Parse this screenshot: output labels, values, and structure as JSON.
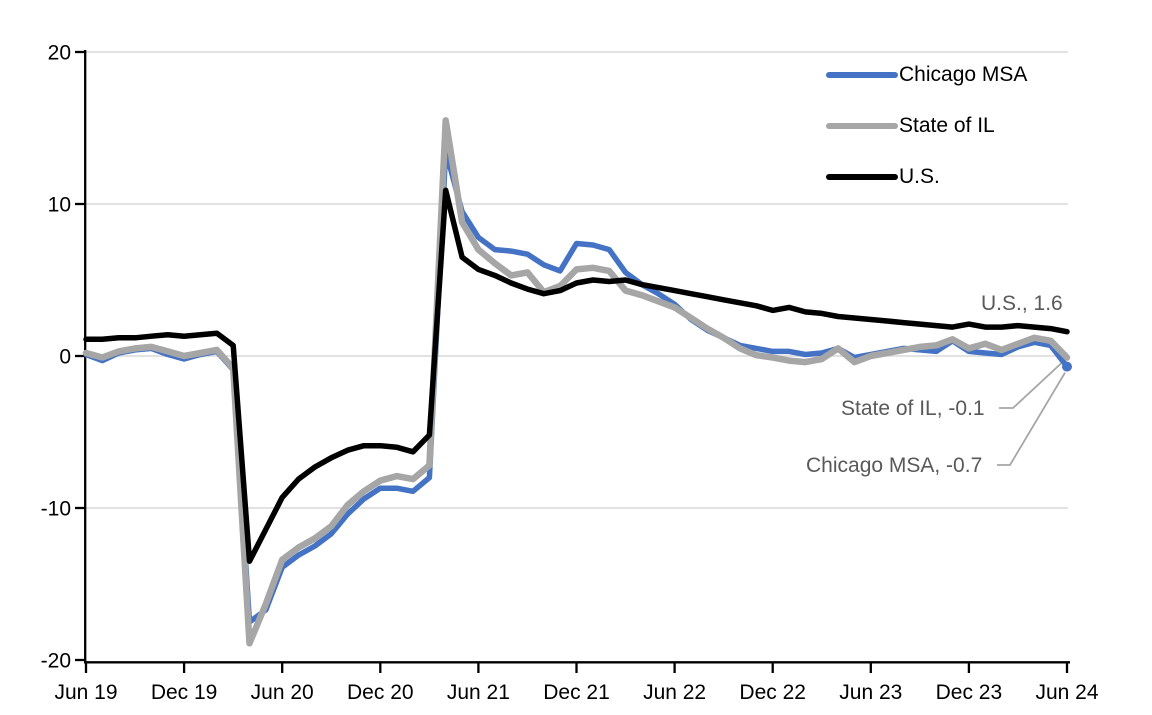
{
  "chart_data": {
    "type": "line",
    "title": "",
    "x_start": "Jun 2019",
    "x_end": "Jun 2024",
    "frequency": "monthly",
    "x_tick_labels": [
      "Jun 19",
      "Dec 19",
      "Jun 20",
      "Dec 20",
      "Jun 21",
      "Dec 21",
      "Jun 22",
      "Dec 22",
      "Jun 23",
      "Dec 23",
      "Jun 24"
    ],
    "y_ticks": [
      20,
      10,
      0,
      -10,
      -20
    ],
    "ylim": [
      -20,
      20
    ],
    "grid": true,
    "legend_position": "top-right",
    "series": [
      {
        "name": "Chicago MSA",
        "color": "#4472C4",
        "values": [
          0.1,
          -0.3,
          0.2,
          0.4,
          0.5,
          0.1,
          -0.2,
          0.1,
          0.3,
          -0.9,
          -17.5,
          -16.7,
          -13.9,
          -13.1,
          -12.5,
          -11.7,
          -10.4,
          -9.4,
          -8.7,
          -8.7,
          -8.9,
          -8.0,
          13.5,
          9.5,
          7.8,
          7.0,
          6.9,
          6.7,
          6.0,
          5.6,
          7.4,
          7.3,
          7.0,
          5.5,
          4.7,
          4.1,
          3.4,
          2.4,
          1.7,
          1.2,
          0.7,
          0.5,
          0.3,
          0.3,
          0.1,
          0.2,
          0.5,
          -0.1,
          0.1,
          0.3,
          0.5,
          0.4,
          0.3,
          1.0,
          0.3,
          0.2,
          0.1,
          0.6,
          0.9,
          0.7,
          -0.7
        ]
      },
      {
        "name": "State of IL",
        "color": "#A6A6A6",
        "values": [
          0.2,
          -0.1,
          0.3,
          0.5,
          0.6,
          0.3,
          0.0,
          0.2,
          0.4,
          -0.8,
          -18.9,
          -16.3,
          -13.4,
          -12.6,
          -12.0,
          -11.2,
          -9.8,
          -8.9,
          -8.2,
          -7.9,
          -8.1,
          -7.2,
          15.5,
          8.8,
          7.0,
          6.1,
          5.3,
          5.5,
          4.2,
          4.6,
          5.7,
          5.8,
          5.6,
          4.3,
          4.0,
          3.6,
          3.2,
          2.5,
          1.8,
          1.2,
          0.5,
          0.05,
          -0.1,
          -0.3,
          -0.4,
          -0.2,
          0.5,
          -0.4,
          0.0,
          0.2,
          0.4,
          0.6,
          0.7,
          1.1,
          0.5,
          0.8,
          0.4,
          0.8,
          1.2,
          1.0,
          -0.1
        ]
      },
      {
        "name": "U.S.",
        "color": "#000000",
        "values": [
          1.1,
          1.1,
          1.2,
          1.2,
          1.3,
          1.4,
          1.3,
          1.4,
          1.5,
          0.7,
          -13.5,
          -11.4,
          -9.3,
          -8.1,
          -7.3,
          -6.7,
          -6.2,
          -5.9,
          -5.9,
          -6.0,
          -6.3,
          -5.2,
          10.9,
          6.5,
          5.7,
          5.3,
          4.8,
          4.4,
          4.1,
          4.3,
          4.8,
          5.0,
          4.9,
          5.0,
          4.7,
          4.5,
          4.3,
          4.1,
          3.9,
          3.7,
          3.5,
          3.3,
          3.0,
          3.2,
          2.9,
          2.8,
          2.6,
          2.5,
          2.4,
          2.3,
          2.2,
          2.1,
          2.0,
          1.9,
          2.1,
          1.9,
          1.9,
          2.0,
          1.9,
          1.8,
          1.6
        ]
      }
    ],
    "annotations": [
      {
        "label": "U.S., 1.6",
        "series": "U.S.",
        "value": 1.6
      },
      {
        "label": "State of IL, -0.1",
        "series": "State of IL",
        "value": -0.1
      },
      {
        "label": "Chicago MSA, -0.7",
        "series": "Chicago MSA",
        "value": -0.7
      }
    ],
    "colors": {
      "grid": "#d9d9d9",
      "axis": "#000000",
      "leader_line": "#a6a6a6",
      "annotation_text": "#595959"
    }
  },
  "legend": {
    "items": [
      {
        "label": "Chicago MSA",
        "color": "#4472C4"
      },
      {
        "label": "State of IL",
        "color": "#A6A6A6"
      },
      {
        "label": "U.S.",
        "color": "#000000"
      }
    ]
  },
  "annotations": {
    "us": {
      "label": "U.S., 1.6"
    },
    "state": {
      "label": "State of IL, -0.1"
    },
    "chicago": {
      "label": "Chicago MSA, -0.7"
    }
  }
}
